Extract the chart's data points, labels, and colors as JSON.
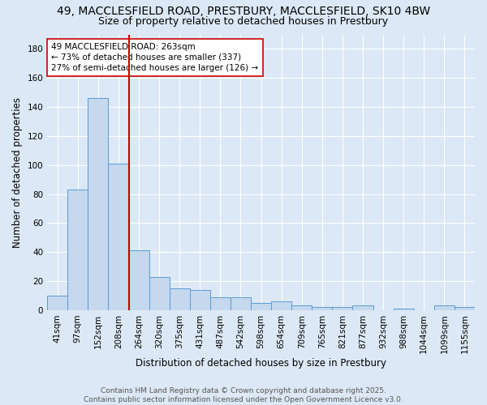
{
  "title_line1": "49, MACCLESFIELD ROAD, PRESTBURY, MACCLESFIELD, SK10 4BW",
  "title_line2": "Size of property relative to detached houses in Prestbury",
  "xlabel": "Distribution of detached houses by size in Prestbury",
  "ylabel": "Number of detached properties",
  "categories": [
    "41sqm",
    "97sqm",
    "152sqm",
    "208sqm",
    "264sqm",
    "320sqm",
    "375sqm",
    "431sqm",
    "487sqm",
    "542sqm",
    "598sqm",
    "654sqm",
    "709sqm",
    "765sqm",
    "821sqm",
    "877sqm",
    "932sqm",
    "988sqm",
    "1044sqm",
    "1099sqm",
    "1155sqm"
  ],
  "values": [
    10,
    83,
    146,
    101,
    41,
    23,
    15,
    14,
    9,
    9,
    5,
    6,
    3,
    2,
    2,
    3,
    0,
    1,
    0,
    3,
    2
  ],
  "bar_color": "#c5d8ee",
  "bar_edge_color": "#5b9bd5",
  "red_line_index": 4,
  "red_line_color": "#cc0000",
  "annotation_line1": "49 MACCLESFIELD ROAD: 263sqm",
  "annotation_line2": "← 73% of detached houses are smaller (337)",
  "annotation_line3": "27% of semi-detached houses are larger (126) →",
  "annotation_box_color": "#ffffff",
  "annotation_box_edge_color": "#cc0000",
  "ylim": [
    0,
    190
  ],
  "yticks": [
    0,
    20,
    40,
    60,
    80,
    100,
    120,
    140,
    160,
    180
  ],
  "background_color": "#dce8f5",
  "plot_bg_color": "#dce8f5",
  "grid_color": "#ffffff",
  "footer_text": "Contains HM Land Registry data © Crown copyright and database right 2025.\nContains public sector information licensed under the Open Government Licence v3.0.",
  "title_fontsize": 10,
  "subtitle_fontsize": 9,
  "axis_label_fontsize": 8.5,
  "tick_fontsize": 7.5,
  "annotation_fontsize": 7.5,
  "footer_fontsize": 6.5
}
